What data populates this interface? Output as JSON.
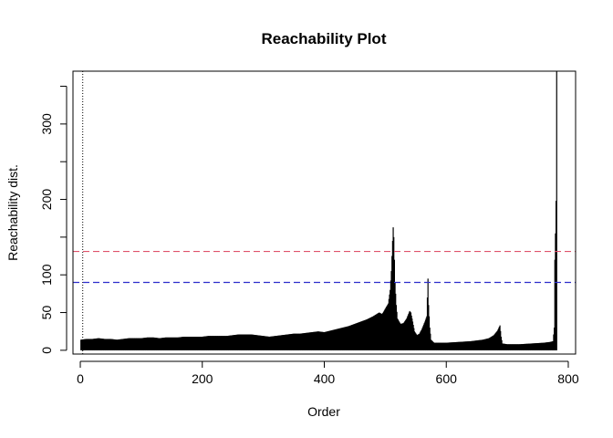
{
  "chart_data": {
    "type": "bar",
    "title": "Reachability Plot",
    "xlabel": "Order",
    "ylabel": "Reachability dist.",
    "xlim": [
      -12,
      812
    ],
    "ylim": [
      -5,
      370
    ],
    "x_ticks": [
      0,
      200,
      400,
      600,
      800
    ],
    "y_ticks": [
      0,
      50,
      100,
      150,
      200,
      250,
      300,
      350
    ],
    "y_tick_labels": [
      "0",
      "50",
      "100",
      "",
      "200",
      "",
      "300",
      ""
    ],
    "grid": false,
    "bar_color": "#000000",
    "envelope": [
      [
        1,
        14
      ],
      [
        10,
        15
      ],
      [
        20,
        15
      ],
      [
        30,
        16
      ],
      [
        40,
        15
      ],
      [
        50,
        15
      ],
      [
        60,
        14
      ],
      [
        70,
        15
      ],
      [
        80,
        16
      ],
      [
        90,
        16
      ],
      [
        100,
        16
      ],
      [
        110,
        17
      ],
      [
        120,
        17
      ],
      [
        130,
        16
      ],
      [
        140,
        17
      ],
      [
        150,
        17
      ],
      [
        160,
        17
      ],
      [
        170,
        18
      ],
      [
        180,
        18
      ],
      [
        190,
        18
      ],
      [
        200,
        18
      ],
      [
        210,
        19
      ],
      [
        220,
        19
      ],
      [
        230,
        19
      ],
      [
        240,
        19
      ],
      [
        250,
        20
      ],
      [
        260,
        21
      ],
      [
        270,
        21
      ],
      [
        280,
        21
      ],
      [
        290,
        20
      ],
      [
        300,
        19
      ],
      [
        310,
        18
      ],
      [
        320,
        19
      ],
      [
        330,
        20
      ],
      [
        340,
        21
      ],
      [
        350,
        22
      ],
      [
        360,
        22
      ],
      [
        370,
        23
      ],
      [
        380,
        24
      ],
      [
        390,
        25
      ],
      [
        400,
        24
      ],
      [
        410,
        26
      ],
      [
        420,
        28
      ],
      [
        430,
        30
      ],
      [
        440,
        32
      ],
      [
        450,
        35
      ],
      [
        460,
        38
      ],
      [
        470,
        41
      ],
      [
        480,
        45
      ],
      [
        490,
        50
      ],
      [
        495,
        48
      ],
      [
        500,
        55
      ],
      [
        505,
        62
      ],
      [
        508,
        80
      ],
      [
        510,
        105
      ],
      [
        512,
        145
      ],
      [
        513,
        163
      ],
      [
        514,
        150
      ],
      [
        515,
        120
      ],
      [
        516,
        90
      ],
      [
        518,
        60
      ],
      [
        520,
        42
      ],
      [
        525,
        35
      ],
      [
        530,
        36
      ],
      [
        535,
        42
      ],
      [
        540,
        52
      ],
      [
        542,
        50
      ],
      [
        545,
        38
      ],
      [
        548,
        25
      ],
      [
        552,
        20
      ],
      [
        556,
        22
      ],
      [
        560,
        28
      ],
      [
        565,
        38
      ],
      [
        568,
        45
      ],
      [
        570,
        95
      ],
      [
        571,
        60
      ],
      [
        573,
        30
      ],
      [
        575,
        14
      ],
      [
        580,
        10
      ],
      [
        600,
        10
      ],
      [
        620,
        11
      ],
      [
        640,
        12
      ],
      [
        660,
        14
      ],
      [
        670,
        16
      ],
      [
        678,
        20
      ],
      [
        684,
        26
      ],
      [
        688,
        33
      ],
      [
        690,
        18
      ],
      [
        692,
        9
      ],
      [
        700,
        8
      ],
      [
        720,
        8
      ],
      [
        740,
        9
      ],
      [
        760,
        10
      ],
      [
        770,
        11
      ],
      [
        775,
        12
      ],
      [
        777,
        30
      ],
      [
        778,
        120
      ],
      [
        779,
        155
      ],
      [
        780,
        198
      ],
      [
        781,
        370
      ],
      [
        782,
        0
      ]
    ],
    "reference_lines": [
      {
        "orientation": "vertical",
        "x": 4,
        "color": "#000000",
        "style": "dotted"
      },
      {
        "orientation": "horizontal",
        "y": 131,
        "color": "#DF536B",
        "style": "dashed"
      },
      {
        "orientation": "horizontal",
        "y": 90,
        "color": "#2E2ECC",
        "style": "dashed"
      }
    ]
  }
}
